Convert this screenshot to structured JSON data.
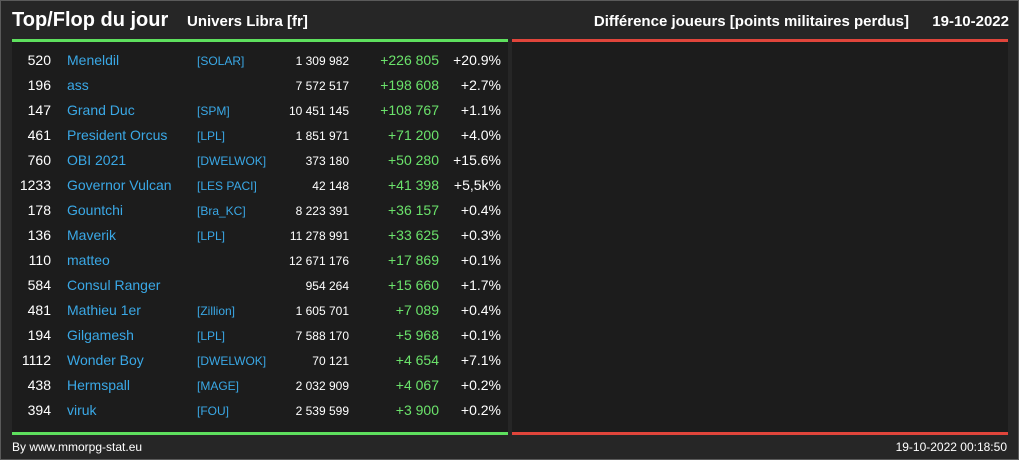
{
  "header": {
    "title": "Top/Flop du jour",
    "universe": "Univers Libra [fr]",
    "metric": "Différence joueurs [points militaires perdus]",
    "date": "19-10-2022"
  },
  "colors": {
    "top_accent": "#5ee05e",
    "flop_accent": "#e0453b",
    "player_link": "#3aa8e6",
    "positive_diff": "#6be36b"
  },
  "top": {
    "rows": [
      {
        "rank": "520",
        "name": "Meneldil",
        "alliance": "[SOLAR]",
        "points": "1 309 982",
        "diff": "+226 805",
        "pct": "+20.9%"
      },
      {
        "rank": "196",
        "name": "ass",
        "alliance": "",
        "points": "7 572 517",
        "diff": "+198 608",
        "pct": "+2.7%"
      },
      {
        "rank": "147",
        "name": "Grand Duc",
        "alliance": "[SPM]",
        "points": "10 451 145",
        "diff": "+108 767",
        "pct": "+1.1%"
      },
      {
        "rank": "461",
        "name": "President Orcus",
        "alliance": "[LPL]",
        "points": "1 851 971",
        "diff": "+71 200",
        "pct": "+4.0%"
      },
      {
        "rank": "760",
        "name": "OBI 2021",
        "alliance": "[DWELWOK]",
        "points": "373 180",
        "diff": "+50 280",
        "pct": "+15.6%"
      },
      {
        "rank": "1233",
        "name": "Governor Vulcan",
        "alliance": "[LES PACI]",
        "points": "42 148",
        "diff": "+41 398",
        "pct": "+5,5k%"
      },
      {
        "rank": "178",
        "name": "Gountchi",
        "alliance": "[Bra_KC]",
        "points": "8 223 391",
        "diff": "+36 157",
        "pct": "+0.4%"
      },
      {
        "rank": "136",
        "name": "Maverik",
        "alliance": "[LPL]",
        "points": "11 278 991",
        "diff": "+33 625",
        "pct": "+0.3%"
      },
      {
        "rank": "110",
        "name": "matteo",
        "alliance": "",
        "points": "12 671 176",
        "diff": "+17 869",
        "pct": "+0.1%"
      },
      {
        "rank": "584",
        "name": "Consul Ranger",
        "alliance": "",
        "points": "954 264",
        "diff": "+15 660",
        "pct": "+1.7%"
      },
      {
        "rank": "481",
        "name": "Mathieu 1er",
        "alliance": "[Zillion]",
        "points": "1 605 701",
        "diff": "+7 089",
        "pct": "+0.4%"
      },
      {
        "rank": "194",
        "name": "Gilgamesh",
        "alliance": "[LPL]",
        "points": "7 588 170",
        "diff": "+5 968",
        "pct": "+0.1%"
      },
      {
        "rank": "1112",
        "name": "Wonder Boy",
        "alliance": "[DWELWOK]",
        "points": "70 121",
        "diff": "+4 654",
        "pct": "+7.1%"
      },
      {
        "rank": "438",
        "name": "Hermspall",
        "alliance": "[MAGE]",
        "points": "2 032 909",
        "diff": "+4 067",
        "pct": "+0.2%"
      },
      {
        "rank": "394",
        "name": "viruk",
        "alliance": "[FOU]",
        "points": "2 539 599",
        "diff": "+3 900",
        "pct": "+0.2%"
      }
    ]
  },
  "footer": {
    "credit": "By www.mmorpg-stat.eu",
    "timestamp": "19-10-2022 00:18:50"
  }
}
